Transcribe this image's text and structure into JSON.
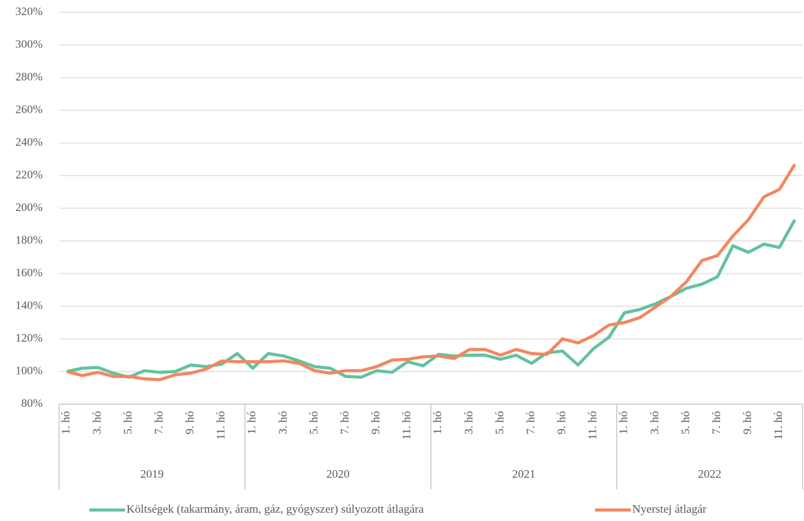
{
  "chart_data": {
    "type": "line",
    "categories": [
      "1. hó",
      null,
      "3. hó",
      null,
      "5. hó",
      null,
      "7. hó",
      null,
      "9. hó",
      null,
      "11. hó",
      null,
      "1. hó",
      null,
      "3. hó",
      null,
      "5. hó",
      null,
      "7. hó",
      null,
      "9. hó",
      null,
      "11. hó",
      null,
      "1. hó",
      null,
      "3. hó",
      null,
      "5. hó",
      null,
      "7. hó",
      null,
      "9. hó",
      null,
      "11. hó",
      null,
      "1. hó",
      null,
      "3. hó",
      null,
      "5. hó",
      null,
      "7. hó",
      null,
      "9. hó",
      null,
      "11. hó",
      null
    ],
    "groups": [
      "2019",
      "2020",
      "2021",
      "2022"
    ],
    "series": [
      {
        "name": "Költségek (takarmány, áram, gáz, gyógyszer) súlyozott átlagára",
        "color": "#62c29e",
        "values": [
          100,
          102,
          102.5,
          99,
          96.5,
          100.5,
          99.5,
          100,
          104,
          103,
          104.5,
          111,
          102,
          111,
          109.5,
          106.5,
          103,
          102,
          97,
          96.5,
          100.5,
          99.5,
          106,
          103.5,
          110.5,
          109.5,
          110,
          110,
          107.5,
          110,
          105,
          111.5,
          112.5,
          104,
          114,
          121,
          136,
          138,
          141.5,
          146,
          151,
          153.5,
          158,
          177,
          173,
          178,
          176,
          193
        ]
      },
      {
        "name": "Nyerstej átlagár",
        "color": "#f4865f",
        "values": [
          100,
          97.5,
          99.5,
          97,
          97,
          95.5,
          95,
          98,
          99,
          101.5,
          106.5,
          106,
          106,
          106,
          106.5,
          105,
          100.5,
          99,
          100.5,
          100.5,
          103,
          107,
          107.5,
          109,
          109.5,
          108,
          113.5,
          113.5,
          110,
          113.5,
          111,
          110.5,
          120,
          117.5,
          122,
          128.5,
          130,
          133,
          139.5,
          146,
          155,
          168,
          171,
          183,
          193,
          207,
          211.5,
          227
        ]
      }
    ],
    "ylim": [
      80,
      320
    ],
    "yticks": [
      {
        "value": 80,
        "label": "80%"
      },
      {
        "value": 100,
        "label": "100%"
      },
      {
        "value": 120,
        "label": "120%"
      },
      {
        "value": 140,
        "label": "140%"
      },
      {
        "value": 160,
        "label": "160%"
      },
      {
        "value": 180,
        "label": "180%"
      },
      {
        "value": 200,
        "label": "200%"
      },
      {
        "value": 220,
        "label": "220%"
      },
      {
        "value": 240,
        "label": "240%"
      },
      {
        "value": 260,
        "label": "260%"
      },
      {
        "value": 280,
        "label": "280%"
      },
      {
        "value": 300,
        "label": "300%"
      },
      {
        "value": 320,
        "label": "320%"
      }
    ],
    "grid": true,
    "legend": "bottom"
  }
}
